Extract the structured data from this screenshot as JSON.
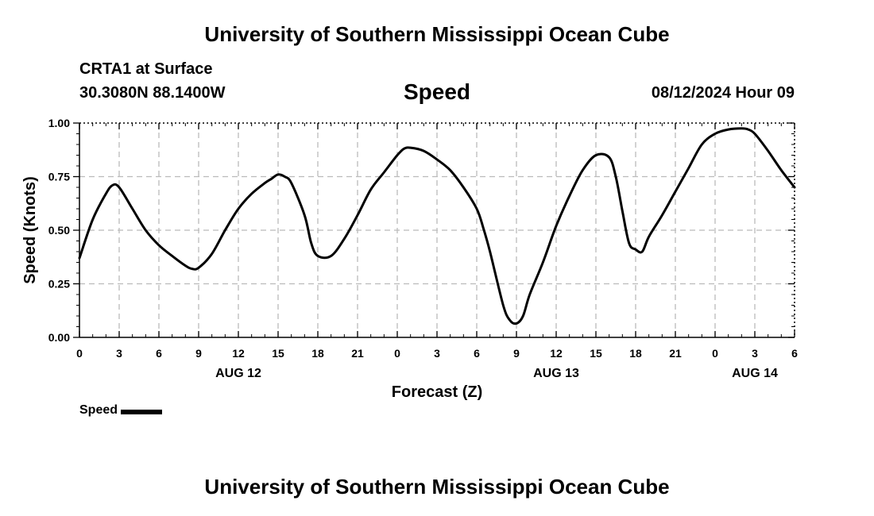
{
  "header": {
    "title_top": "University of Southern Mississippi Ocean Cube",
    "station": "CRTA1 at Surface",
    "coords": "30.3080N  88.1400W",
    "datetime": "08/12/2024 Hour 09",
    "title_bottom": "University of Southern Mississippi Ocean Cube"
  },
  "legend": {
    "label": "Speed"
  },
  "chart_data": {
    "type": "line",
    "title": "Speed",
    "xlabel": "Forecast (Z)",
    "ylabel": "Speed (Knots)",
    "ylim": [
      0,
      1
    ],
    "xlim": [
      0,
      54
    ],
    "x_unit": "forecast hours from 00Z AUG 12",
    "yticks": [
      0,
      0.25,
      0.5,
      0.75,
      1.0
    ],
    "ytick_labels": [
      "0.00",
      "0.25",
      "0.50",
      "0.75",
      "1.00"
    ],
    "xticks": [
      0,
      3,
      6,
      9,
      12,
      15,
      18,
      21,
      24,
      27,
      30,
      33,
      36,
      39,
      42,
      45,
      48,
      51,
      54
    ],
    "xtick_labels": [
      "0",
      "3",
      "6",
      "9",
      "12",
      "15",
      "18",
      "21",
      "0",
      "3",
      "6",
      "9",
      "12",
      "15",
      "18",
      "21",
      "0",
      "3",
      "6"
    ],
    "date_labels": [
      {
        "x": 12,
        "label": "AUG 12"
      },
      {
        "x": 36,
        "label": "AUG 13"
      },
      {
        "x": 51,
        "label": "AUG 14"
      }
    ],
    "grid": true,
    "line_color": "#000000",
    "grid_color": "#bbbbbb",
    "series": [
      {
        "name": "Speed",
        "x": [
          0,
          1,
          2,
          2.5,
          3,
          4,
          5,
          6,
          7,
          8,
          8.5,
          9,
          10,
          11,
          12,
          13,
          14,
          14.5,
          15,
          15.5,
          16,
          17,
          17.5,
          18,
          19,
          20,
          21,
          22,
          23,
          24,
          24.5,
          25,
          26,
          27,
          28,
          29,
          30,
          30.5,
          31,
          32,
          32.5,
          33,
          33.5,
          34,
          35,
          36,
          37,
          38,
          39,
          40,
          40.5,
          41,
          41.5,
          42,
          42.5,
          43,
          44,
          45,
          46,
          47,
          48,
          49,
          50,
          50.5,
          51,
          52,
          53,
          54
        ],
        "y": [
          0.37,
          0.55,
          0.67,
          0.71,
          0.7,
          0.6,
          0.5,
          0.43,
          0.38,
          0.335,
          0.32,
          0.325,
          0.39,
          0.5,
          0.6,
          0.67,
          0.72,
          0.74,
          0.76,
          0.75,
          0.72,
          0.57,
          0.44,
          0.38,
          0.38,
          0.46,
          0.57,
          0.69,
          0.77,
          0.85,
          0.88,
          0.885,
          0.87,
          0.83,
          0.78,
          0.7,
          0.6,
          0.51,
          0.4,
          0.15,
          0.08,
          0.065,
          0.1,
          0.2,
          0.35,
          0.52,
          0.66,
          0.78,
          0.85,
          0.84,
          0.75,
          0.59,
          0.44,
          0.41,
          0.4,
          0.47,
          0.57,
          0.68,
          0.79,
          0.9,
          0.95,
          0.97,
          0.975,
          0.97,
          0.95,
          0.87,
          0.78,
          0.7
        ]
      }
    ]
  }
}
